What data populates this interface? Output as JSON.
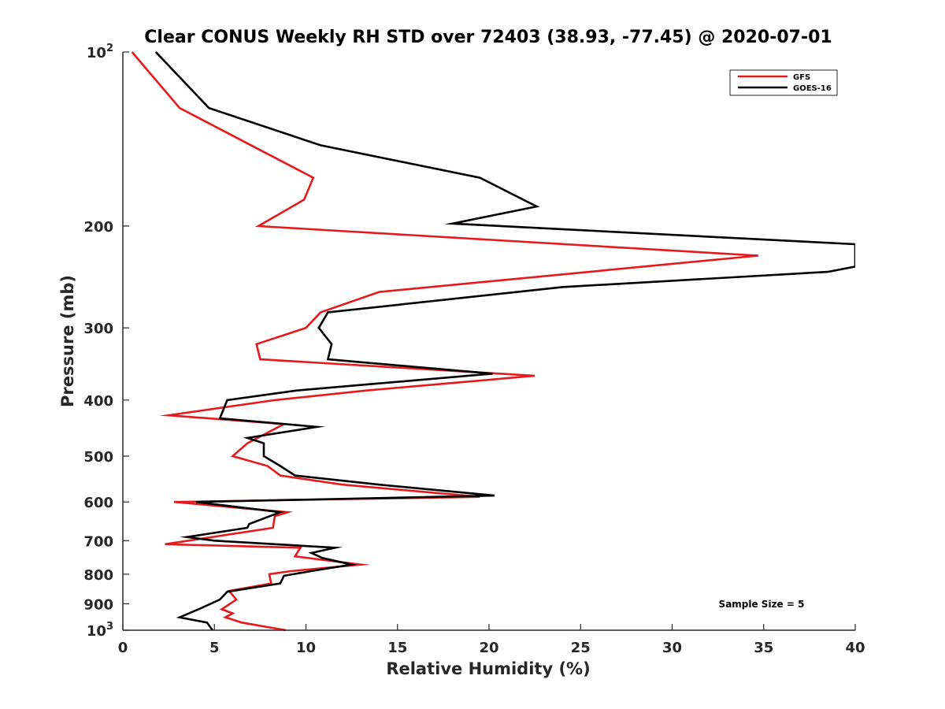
{
  "chart_data": {
    "type": "line",
    "title": "Clear CONUS Weekly RH STD over 72403 (38.93, -77.45) @ 2020-07-01",
    "xlabel": "Relative Humidity (%)",
    "ylabel": "Pressure (mb)",
    "xlim": [
      0,
      40
    ],
    "ylim": [
      100,
      1000
    ],
    "yscale": "log",
    "y_reversed": true,
    "grid": false,
    "legend_position": "top-right",
    "x_ticks": [
      0,
      5,
      10,
      15,
      20,
      25,
      30,
      35,
      40
    ],
    "y_ticks": [
      {
        "value": 100,
        "label": "10",
        "sup": "2"
      },
      {
        "value": 200,
        "label": "200",
        "sup": ""
      },
      {
        "value": 300,
        "label": "300",
        "sup": ""
      },
      {
        "value": 400,
        "label": "400",
        "sup": ""
      },
      {
        "value": 500,
        "label": "500",
        "sup": ""
      },
      {
        "value": 600,
        "label": "600",
        "sup": ""
      },
      {
        "value": 700,
        "label": "700",
        "sup": ""
      },
      {
        "value": 800,
        "label": "800",
        "sup": ""
      },
      {
        "value": 900,
        "label": "900",
        "sup": ""
      },
      {
        "value": 1000,
        "label": "10",
        "sup": "3"
      }
    ],
    "series": [
      {
        "name": "GFS",
        "color": "#e41a1c",
        "points": [
          [
            0.5,
            100
          ],
          [
            3.1,
            125
          ],
          [
            10.4,
            165
          ],
          [
            9.9,
            180
          ],
          [
            7.4,
            200
          ],
          [
            34.7,
            225
          ],
          [
            14.0,
            260
          ],
          [
            10.8,
            282
          ],
          [
            10.0,
            300
          ],
          [
            7.3,
            320
          ],
          [
            7.5,
            340
          ],
          [
            22.5,
            363
          ],
          [
            13.3,
            385
          ],
          [
            8.3,
            400
          ],
          [
            2.5,
            425
          ],
          [
            8.8,
            440
          ],
          [
            6.8,
            475
          ],
          [
            6.0,
            500
          ],
          [
            7.9,
            520
          ],
          [
            8.6,
            540
          ],
          [
            12.0,
            560
          ],
          [
            19.5,
            588
          ],
          [
            2.8,
            600
          ],
          [
            9.0,
            625
          ],
          [
            8.3,
            635
          ],
          [
            8.2,
            665
          ],
          [
            2.3,
            710
          ],
          [
            9.7,
            720
          ],
          [
            9.4,
            745
          ],
          [
            13.0,
            770
          ],
          [
            9.2,
            790
          ],
          [
            8.0,
            800
          ],
          [
            8.1,
            830
          ],
          [
            5.8,
            855
          ],
          [
            6.2,
            885
          ],
          [
            5.4,
            920
          ],
          [
            6.0,
            935
          ],
          [
            5.6,
            950
          ],
          [
            6.5,
            970
          ],
          [
            8.9,
            1000
          ]
        ]
      },
      {
        "name": "GOES-16",
        "color": "#000000",
        "points": [
          [
            1.8,
            100
          ],
          [
            4.7,
            125
          ],
          [
            10.8,
            145
          ],
          [
            19.5,
            165
          ],
          [
            22.6,
            185
          ],
          [
            18.0,
            198
          ],
          [
            40.0,
            215
          ],
          [
            40.0,
            235
          ],
          [
            38.5,
            240
          ],
          [
            24.0,
            255
          ],
          [
            11.2,
            282
          ],
          [
            10.7,
            300
          ],
          [
            11.4,
            320
          ],
          [
            11.2,
            340
          ],
          [
            20.2,
            360
          ],
          [
            9.5,
            385
          ],
          [
            5.7,
            400
          ],
          [
            5.3,
            430
          ],
          [
            10.6,
            445
          ],
          [
            6.8,
            465
          ],
          [
            7.7,
            475
          ],
          [
            7.7,
            500
          ],
          [
            8.6,
            520
          ],
          [
            9.4,
            540
          ],
          [
            14.0,
            560
          ],
          [
            20.3,
            585
          ],
          [
            4.0,
            600
          ],
          [
            8.6,
            625
          ],
          [
            6.9,
            655
          ],
          [
            6.8,
            665
          ],
          [
            3.5,
            690
          ],
          [
            5.0,
            700
          ],
          [
            11.6,
            720
          ],
          [
            10.3,
            735
          ],
          [
            10.9,
            750
          ],
          [
            12.5,
            770
          ],
          [
            10.3,
            790
          ],
          [
            8.8,
            805
          ],
          [
            8.6,
            830
          ],
          [
            5.7,
            858
          ],
          [
            5.3,
            885
          ],
          [
            4.3,
            915
          ],
          [
            3.1,
            950
          ],
          [
            4.6,
            970
          ],
          [
            4.9,
            1000
          ]
        ]
      }
    ],
    "annotation": "Sample Size = 5"
  }
}
